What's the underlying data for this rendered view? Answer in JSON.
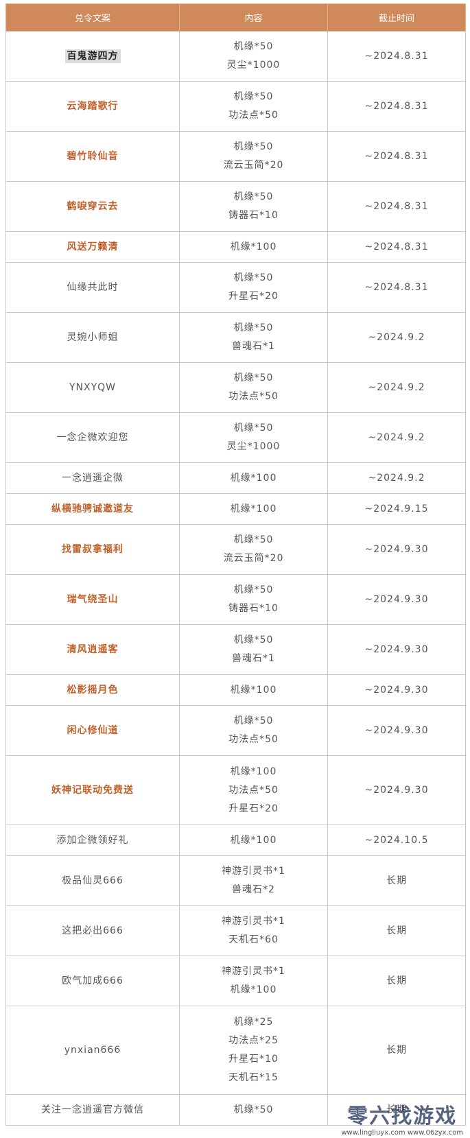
{
  "table": {
    "header": [
      "兑令文案",
      "内容",
      "截止时间"
    ],
    "rows": [
      {
        "code": "百鬼游四方",
        "items": [
          "机缘*50",
          "灵尘*1000"
        ],
        "deadline": "~2024.8.31",
        "color": "#222222",
        "highlight": "#dddddd"
      },
      {
        "code": "云海踏歌行",
        "items": [
          "机缘*50",
          "功法点*50"
        ],
        "deadline": "~2024.8.31",
        "color": "#c0602a"
      },
      {
        "code": "碧竹聆仙音",
        "items": [
          "机缘*50",
          "流云玉简*20"
        ],
        "deadline": "~2024.8.31",
        "color": "#c0602a"
      },
      {
        "code": "鹤唳穿云去",
        "items": [
          "机缘*50",
          "铸器石*10"
        ],
        "deadline": "~2024.8.31",
        "color": "#c0602a"
      },
      {
        "code": "风送万籁清",
        "items": [
          "机缘*100"
        ],
        "deadline": "~2024.8.31",
        "color": "#c0602a"
      },
      {
        "code": "仙缘共此时",
        "items": [
          "机缘*50",
          "升星石*20"
        ],
        "deadline": "~2024.8.31"
      },
      {
        "code": "灵婉小师姐",
        "items": [
          "机缘*50",
          "兽魂石*1"
        ],
        "deadline": "~2024.9.2"
      },
      {
        "code": "YNXYQW",
        "items": [
          "机缘*50",
          "功法点*50"
        ],
        "deadline": "~2024.9.2"
      },
      {
        "code": "一念企微欢迎您",
        "items": [
          "机缘*50",
          "灵尘*1000"
        ],
        "deadline": "~2024.9.2"
      },
      {
        "code": "一念逍遥企微",
        "items": [
          "机缘*100"
        ],
        "deadline": "~2024.9.2"
      },
      {
        "code": "纵横驰骋诚邀道友",
        "items": [
          "机缘*100"
        ],
        "deadline": "~2024.9.15",
        "color": "#c0602a"
      },
      {
        "code": "找雷叔拿福利",
        "items": [
          "机缘*50",
          "流云玉简*20"
        ],
        "deadline": "~2024.9.30",
        "color": "#c0602a"
      },
      {
        "code": "瑞气绕圣山",
        "items": [
          "机缘*50",
          "铸器石*10"
        ],
        "deadline": "~2024.9.30",
        "color": "#c0602a"
      },
      {
        "code": "清风逍遥客",
        "items": [
          "机缘*50",
          "兽魂石*1"
        ],
        "deadline": "~2024.9.30",
        "color": "#c0602a"
      },
      {
        "code": "松影摇月色",
        "items": [
          "机缘*100"
        ],
        "deadline": "~2024.9.30",
        "color": "#c0602a"
      },
      {
        "code": "闲心修仙道",
        "items": [
          "机缘*50",
          "功法点*50"
        ],
        "deadline": "~2024.9.30",
        "color": "#c0602a"
      },
      {
        "code": "妖神记联动免费送",
        "items": [
          "机缘*100",
          "功法点*50",
          "升星石*20"
        ],
        "deadline": "~2024.9.30",
        "color": "#c0602a"
      },
      {
        "code": "添加企微领好礼",
        "items": [
          "机缘*100"
        ],
        "deadline": "~2024.10.5"
      },
      {
        "code": "极品仙灵666",
        "items": [
          "神游引灵书*1",
          "兽魂石*2"
        ],
        "deadline": "长期"
      },
      {
        "code": "这把必出666",
        "items": [
          "神游引灵书*1",
          "天机石*60"
        ],
        "deadline": "长期"
      },
      {
        "code": "欧气加成666",
        "items": [
          "神游引灵书*1",
          "机缘*100"
        ],
        "deadline": "长期"
      },
      {
        "code": "ynxian666",
        "items": [
          "机缘*25",
          "功法点*25",
          "升星石*10",
          "天机石*15"
        ],
        "deadline": "长期"
      },
      {
        "code": "关注一念逍遥官方微信",
        "items": [
          "机缘*50"
        ],
        "deadline": "长期"
      }
    ]
  },
  "watermark": {
    "title": "零六找游戏",
    "urls": "www.lingliuyx.com  www.06zyx.com"
  }
}
